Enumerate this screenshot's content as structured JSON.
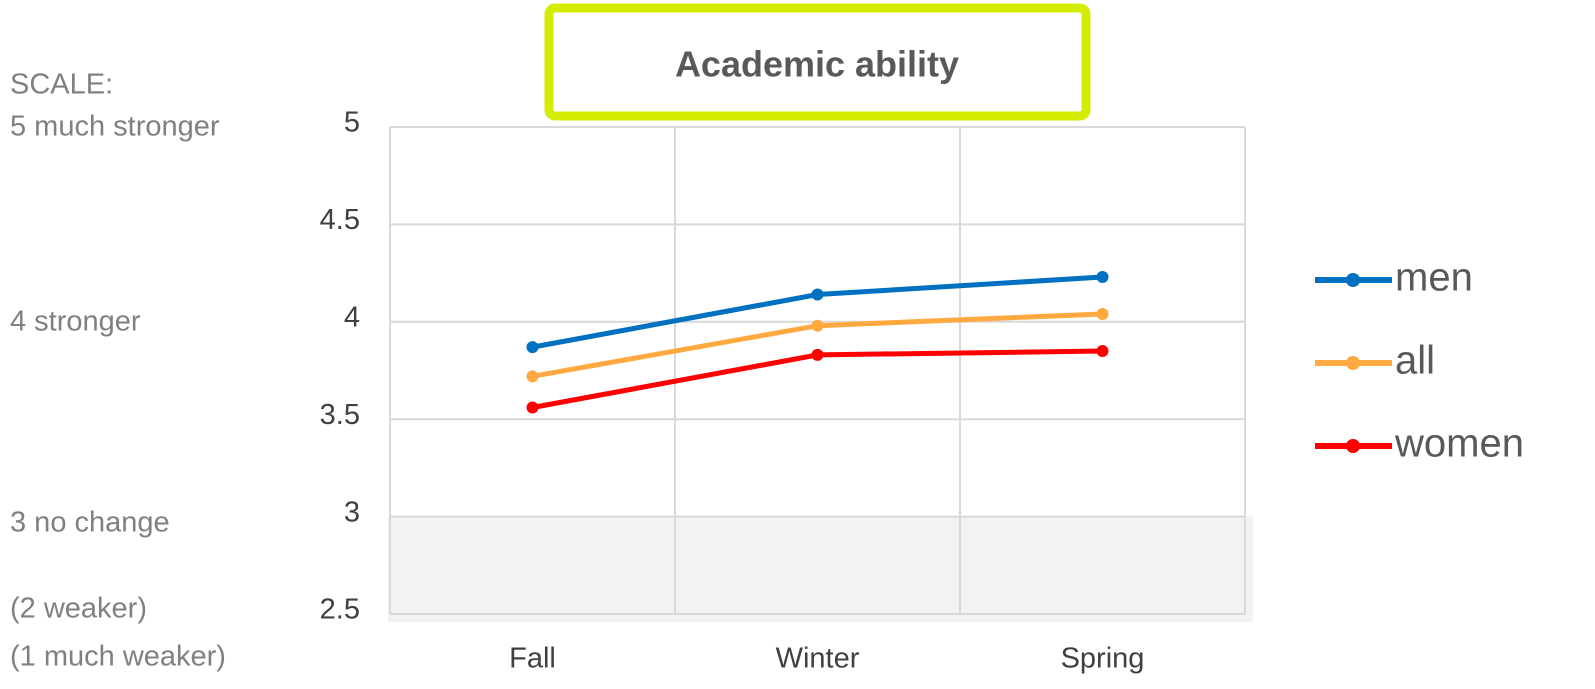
{
  "chart_data": {
    "type": "line",
    "title": "Academic ability",
    "categories": [
      "Fall",
      "Winter",
      "Spring"
    ],
    "series": [
      {
        "name": "men",
        "color": "#0070c0",
        "values": [
          3.87,
          4.14,
          4.23
        ]
      },
      {
        "name": "all",
        "color": "#ffa940",
        "values": [
          3.72,
          3.98,
          4.04
        ]
      },
      {
        "name": "women",
        "color": "#ff0000",
        "values": [
          3.56,
          3.83,
          3.85
        ]
      }
    ],
    "ylim": [
      2.5,
      5
    ],
    "yticks": [
      2.5,
      3,
      3.5,
      4,
      4.5,
      5
    ],
    "grid": true,
    "shaded_range": [
      2.5,
      3
    ],
    "legend": "right",
    "scale_notes": [
      "SCALE:",
      "5 much stronger",
      "4 stronger",
      "3 no change",
      "(2 weaker)",
      "(1 much weaker)"
    ]
  }
}
